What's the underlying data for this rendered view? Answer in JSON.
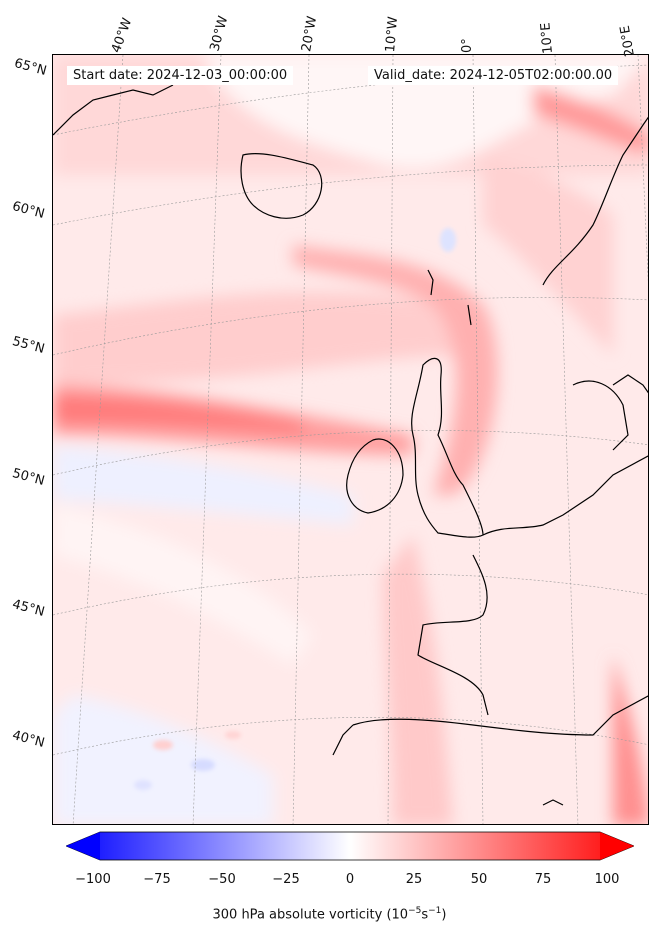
{
  "header": {
    "start_date": "Start date: 2024-12-03_00:00:00",
    "valid_date": "Valid_date: 2024-12-05T02:00:00.00"
  },
  "lon_labels": [
    "40°W",
    "30°W",
    "20°W",
    "10°W",
    "0°",
    "10°E",
    "20°E"
  ],
  "lat_labels": [
    "65°N",
    "60°N",
    "55°N",
    "50°N",
    "45°N",
    "40°N"
  ],
  "colorbar": {
    "ticks": [
      "−100",
      "−75",
      "−50",
      "−25",
      "0",
      "25",
      "50",
      "75",
      "100"
    ],
    "title_main": "300 hPa absolute vorticity (10",
    "title_exp1": "−5",
    "title_mid": "s",
    "title_exp2": "−1",
    "title_end": ")",
    "min_color": "#0000ff",
    "mid_color": "#ffffff",
    "max_color": "#ff0000"
  }
}
